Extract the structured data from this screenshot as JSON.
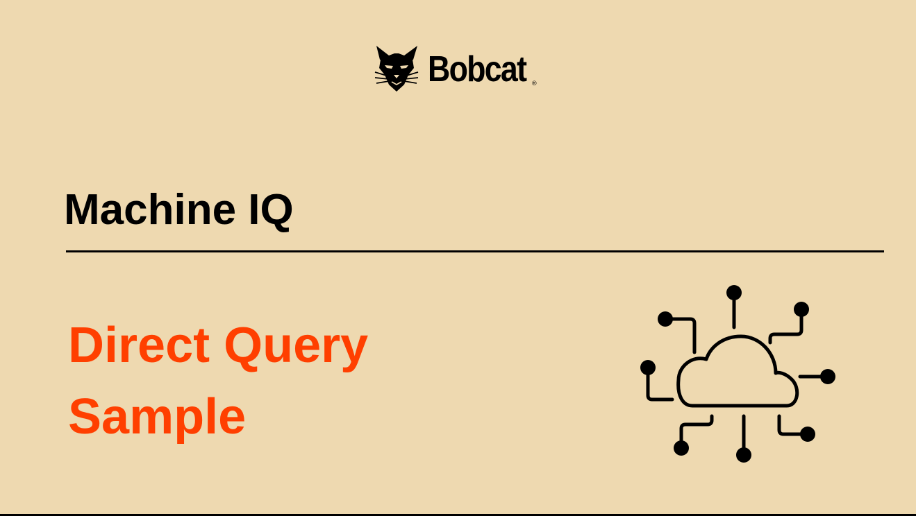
{
  "logo": {
    "brand_name": "Bobcat",
    "registered_mark": "®"
  },
  "title": "Machine IQ",
  "subtitle": {
    "line1": "Direct Query",
    "line2": "Sample"
  },
  "icons": {
    "brand_mark": "bobcat-head-icon",
    "hero": "cloud-network-icon"
  },
  "colors": {
    "background": "#EED9B0",
    "accent": "#FF3F00",
    "text": "#000000"
  }
}
